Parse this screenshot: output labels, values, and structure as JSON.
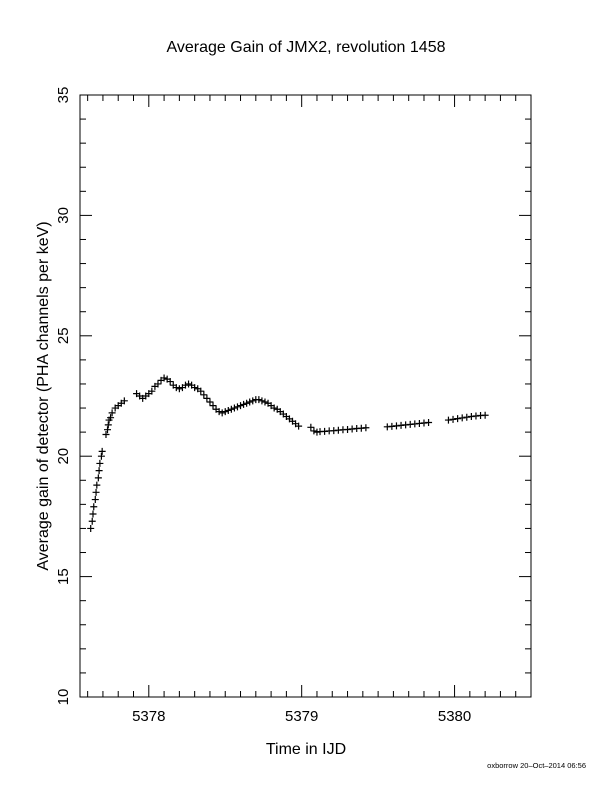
{
  "chart_data": {
    "type": "scatter",
    "title": "Average Gain of JMX2, revolution 1458",
    "xlabel": "Time in IJD",
    "ylabel": "Average gain of detector (PHA channels per keV)",
    "xlim": [
      5377.55,
      5380.5
    ],
    "ylim": [
      10,
      35
    ],
    "xticks": [
      5378,
      5379,
      5380
    ],
    "yticks": [
      10,
      15,
      20,
      25,
      30,
      35
    ],
    "x_minor_step": 0.1,
    "y_minor_step": 1,
    "grid": false,
    "marker": "plus",
    "series": [
      {
        "points": [
          [
            5377.62,
            17.0
          ],
          [
            5377.63,
            17.3
          ],
          [
            5377.635,
            17.6
          ],
          [
            5377.64,
            17.9
          ],
          [
            5377.65,
            18.2
          ],
          [
            5377.655,
            18.5
          ],
          [
            5377.66,
            18.8
          ],
          [
            5377.67,
            19.1
          ],
          [
            5377.675,
            19.4
          ],
          [
            5377.68,
            19.7
          ],
          [
            5377.69,
            20.0
          ],
          [
            5377.695,
            20.2
          ],
          [
            5377.72,
            20.9
          ],
          [
            5377.73,
            21.1
          ],
          [
            5377.735,
            21.3
          ],
          [
            5377.74,
            21.5
          ],
          [
            5377.75,
            21.6
          ],
          [
            5377.76,
            21.8
          ],
          [
            5377.78,
            22.0
          ],
          [
            5377.8,
            22.1
          ],
          [
            5377.82,
            22.2
          ],
          [
            5377.84,
            22.3
          ],
          [
            5377.92,
            22.6
          ],
          [
            5377.94,
            22.5
          ],
          [
            5377.96,
            22.4
          ],
          [
            5377.98,
            22.5
          ],
          [
            5378.0,
            22.6
          ],
          [
            5378.02,
            22.7
          ],
          [
            5378.04,
            22.9
          ],
          [
            5378.06,
            23.0
          ],
          [
            5378.08,
            23.15
          ],
          [
            5378.1,
            23.25
          ],
          [
            5378.12,
            23.2
          ],
          [
            5378.14,
            23.1
          ],
          [
            5378.16,
            22.95
          ],
          [
            5378.18,
            22.85
          ],
          [
            5378.2,
            22.8
          ],
          [
            5378.22,
            22.85
          ],
          [
            5378.24,
            22.95
          ],
          [
            5378.26,
            23.0
          ],
          [
            5378.28,
            22.95
          ],
          [
            5378.3,
            22.85
          ],
          [
            5378.32,
            22.8
          ],
          [
            5378.34,
            22.7
          ],
          [
            5378.36,
            22.55
          ],
          [
            5378.38,
            22.4
          ],
          [
            5378.4,
            22.25
          ],
          [
            5378.42,
            22.1
          ],
          [
            5378.44,
            21.95
          ],
          [
            5378.46,
            21.85
          ],
          [
            5378.48,
            21.8
          ],
          [
            5378.5,
            21.85
          ],
          [
            5378.52,
            21.9
          ],
          [
            5378.54,
            21.95
          ],
          [
            5378.56,
            22.0
          ],
          [
            5378.58,
            22.05
          ],
          [
            5378.6,
            22.1
          ],
          [
            5378.62,
            22.15
          ],
          [
            5378.64,
            22.2
          ],
          [
            5378.66,
            22.25
          ],
          [
            5378.68,
            22.3
          ],
          [
            5378.7,
            22.35
          ],
          [
            5378.72,
            22.35
          ],
          [
            5378.74,
            22.3
          ],
          [
            5378.76,
            22.25
          ],
          [
            5378.78,
            22.2
          ],
          [
            5378.8,
            22.1
          ],
          [
            5378.82,
            22.0
          ],
          [
            5378.84,
            21.95
          ],
          [
            5378.86,
            21.85
          ],
          [
            5378.88,
            21.75
          ],
          [
            5378.9,
            21.65
          ],
          [
            5378.92,
            21.55
          ],
          [
            5378.94,
            21.45
          ],
          [
            5378.96,
            21.35
          ],
          [
            5378.98,
            21.25
          ],
          [
            5379.06,
            21.2
          ],
          [
            5379.08,
            21.05
          ],
          [
            5379.1,
            21.0
          ],
          [
            5379.12,
            21.02
          ],
          [
            5379.15,
            21.03
          ],
          [
            5379.18,
            21.05
          ],
          [
            5379.21,
            21.06
          ],
          [
            5379.24,
            21.08
          ],
          [
            5379.27,
            21.1
          ],
          [
            5379.3,
            21.11
          ],
          [
            5379.33,
            21.13
          ],
          [
            5379.36,
            21.15
          ],
          [
            5379.39,
            21.16
          ],
          [
            5379.42,
            21.18
          ],
          [
            5379.56,
            21.22
          ],
          [
            5379.59,
            21.24
          ],
          [
            5379.62,
            21.26
          ],
          [
            5379.65,
            21.28
          ],
          [
            5379.68,
            21.3
          ],
          [
            5379.71,
            21.32
          ],
          [
            5379.74,
            21.34
          ],
          [
            5379.77,
            21.36
          ],
          [
            5379.8,
            21.38
          ],
          [
            5379.83,
            21.4
          ],
          [
            5379.96,
            21.5
          ],
          [
            5379.99,
            21.53
          ],
          [
            5380.02,
            21.56
          ],
          [
            5380.05,
            21.59
          ],
          [
            5380.08,
            21.62
          ],
          [
            5380.11,
            21.65
          ],
          [
            5380.14,
            21.67
          ],
          [
            5380.17,
            21.69
          ],
          [
            5380.2,
            21.7
          ]
        ]
      }
    ]
  },
  "footer_stamp": "oxborrow 20–Oct–2014 06:56"
}
